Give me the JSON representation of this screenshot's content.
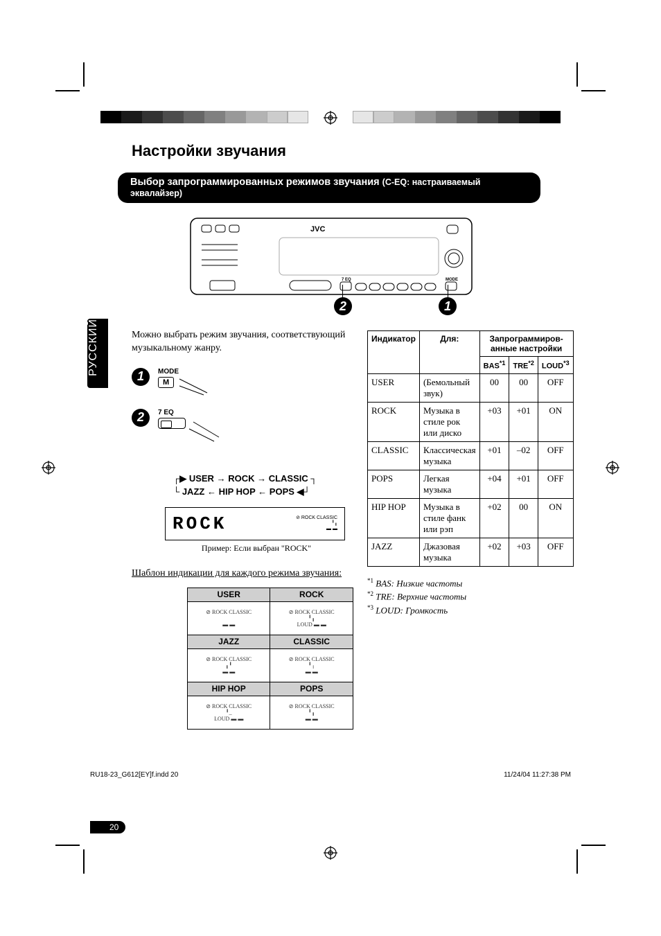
{
  "page": {
    "section_title": "Настройки звучания",
    "banner_main": "Выбор запрограммированных режимов звучания",
    "banner_sub": "(C-EQ: настраиваемый эквалайзер)",
    "language_tab": "РУССКИЙ",
    "page_number": "20",
    "footer_left": "RU18-23_G612[EY]f.indd   20",
    "footer_right": "11/24/04  11:27:38 PM"
  },
  "stereo": {
    "brand": "JVC"
  },
  "callouts": {
    "one": "1",
    "two": "2"
  },
  "intro": "Можно выбрать режим звучания, соответствующий музыкальному жанру.",
  "step1": {
    "label": "MODE",
    "button": "M"
  },
  "step2": {
    "label": "7  EQ"
  },
  "cycle": {
    "row1_a": "USER",
    "row1_b": "ROCK",
    "row1_c": "CLASSIC",
    "row2_a": "JAZZ",
    "row2_b": "HIP HOP",
    "row2_c": "POPS"
  },
  "lcd": {
    "text": "ROCK",
    "caption": "Пример: Если выбран \"ROCK\""
  },
  "pattern_heading": "Шаблон индикации для каждого режима звучания:",
  "preset_grid": {
    "headers": [
      "USER",
      "ROCK",
      "JAZZ",
      "CLASSIC",
      "HIP HOP",
      "POPS"
    ]
  },
  "settings_table": {
    "col_indicator": "Индикатор",
    "col_for": "Для:",
    "col_group": "Запрограммиров-анные настройки",
    "sub_bas": "BAS",
    "sub_bas_sup": "*1",
    "sub_tre": "TRE",
    "sub_tre_sup": "*2",
    "sub_loud": "LOUD",
    "sub_loud_sup": "*3",
    "rows": [
      {
        "ind": "USER",
        "for": "(Бемольный звук)",
        "bas": "00",
        "tre": "00",
        "loud": "OFF"
      },
      {
        "ind": "ROCK",
        "for": "Музыка в стиле рок или диско",
        "bas": "+03",
        "tre": "+01",
        "loud": "ON"
      },
      {
        "ind": "CLASSIC",
        "for": "Классическая музыка",
        "bas": "+01",
        "tre": "–02",
        "loud": "OFF"
      },
      {
        "ind": "POPS",
        "for": "Легкая музыка",
        "bas": "+04",
        "tre": "+01",
        "loud": "OFF"
      },
      {
        "ind": "HIP HOP",
        "for": "Музыка в стиле фанк или рэп",
        "bas": "+02",
        "tre": "00",
        "loud": "ON"
      },
      {
        "ind": "JAZZ",
        "for": "Джазовая музыка",
        "bas": "+02",
        "tre": "+03",
        "loud": "OFF"
      }
    ]
  },
  "footnotes": {
    "n1_sup": "*1",
    "n1": "BAS: Низкие частоты",
    "n2_sup": "*2",
    "n2": "TRE: Верхние частоты",
    "n3_sup": "*3",
    "n3": "LOUD: Громкость"
  },
  "styling": {
    "colorbar_shades": [
      "#000000",
      "#1a1a1a",
      "#333333",
      "#4d4d4d",
      "#666666",
      "#808080",
      "#999999",
      "#b3b3b3",
      "#cccccc",
      "#e6e6e6",
      "#ffffff"
    ],
    "banner_bg": "#000000",
    "banner_fg": "#ffffff",
    "grid_header_bg": "#d0d0d0",
    "table_border": "#000000",
    "page_bg": "#ffffff",
    "section_title_fontsize": 22,
    "body_fontsize": 14,
    "table_fontsize": 13
  }
}
